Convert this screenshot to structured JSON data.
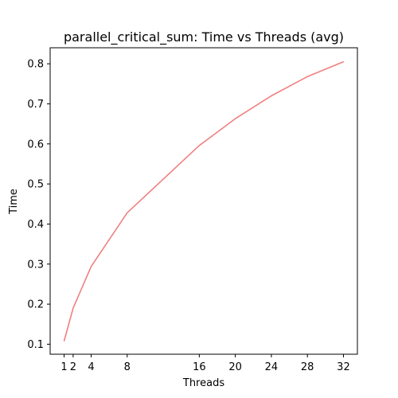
{
  "chart_data": {
    "type": "line",
    "title": "parallel_critical_sum: Time vs Threads (avg)",
    "xlabel": "Threads",
    "ylabel": "Time",
    "x_ticks": [
      1,
      2,
      4,
      8,
      16,
      20,
      24,
      28,
      32
    ],
    "y_ticks": [
      0.1,
      0.2,
      0.3,
      0.4,
      0.5,
      0.6,
      0.7,
      0.8
    ],
    "xlim": [
      -0.55,
      33.55
    ],
    "ylim": [
      0.075,
      0.84
    ],
    "grid": false,
    "series": [
      {
        "color": "#f08080",
        "x": [
          1,
          2,
          4,
          8,
          16,
          20,
          24,
          28,
          32
        ],
        "y": [
          0.108,
          0.19,
          0.294,
          0.428,
          0.596,
          0.663,
          0.72,
          0.768,
          0.805
        ]
      }
    ]
  }
}
